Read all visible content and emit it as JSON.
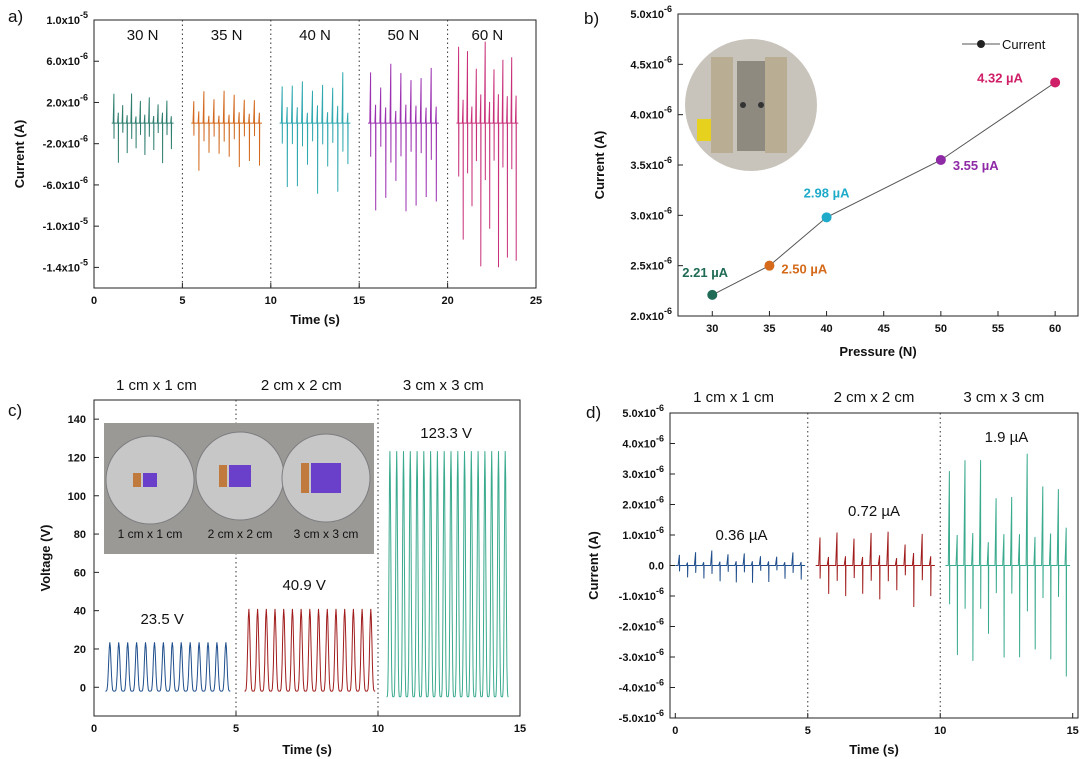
{
  "colors": {
    "teal": "#2e7d6e",
    "orange": "#d2691e",
    "cyan": "#2fa8b0",
    "purple": "#9b30b0",
    "magenta": "#c8317a",
    "dkgreen": "#1f6b55",
    "pt_orange": "#d46a1a",
    "pt_cyan": "#1eabc9",
    "pt_purple": "#8e2aa6",
    "pt_magenta": "#cf1f68",
    "navy": "#1f4e8c",
    "darkred": "#a01c1c",
    "seagreen": "#3aaa8e"
  },
  "chart_data": [
    {
      "panel": "a)",
      "type": "line",
      "xlabel": "Time (s)",
      "ylabel": "Current (A)",
      "xlim": [
        0,
        25
      ],
      "ylim": [
        -1.6e-05,
        1e-05
      ],
      "xticks": [
        "0",
        "5",
        "10",
        "15",
        "20",
        "25"
      ],
      "yticks": [
        {
          "value": 1e-05,
          "mant": "1.0x10",
          "exp": "-5"
        },
        {
          "value": 6e-06,
          "mant": "6.0x10",
          "exp": "-6"
        },
        {
          "value": 2e-06,
          "mant": "2.0x10",
          "exp": "-6"
        },
        {
          "value": -2e-06,
          "mant": "-2.0x10",
          "exp": "-6"
        },
        {
          "value": -6e-06,
          "mant": "-6.0x10",
          "exp": "-6"
        },
        {
          "value": -1e-05,
          "mant": "-1.0x10",
          "exp": "-5"
        },
        {
          "value": -1.4e-05,
          "mant": "-1.4x10",
          "exp": "-5"
        }
      ],
      "dividers": [
        5,
        10,
        15,
        20
      ],
      "series": [
        {
          "name": "30 N",
          "x_range": [
            1.0,
            4.5
          ],
          "peak_pos": 3e-06,
          "peak_neg": -4e-06,
          "color": "teal"
        },
        {
          "name": "35 N",
          "x_range": [
            5.5,
            9.5
          ],
          "peak_pos": 3.5e-06,
          "peak_neg": -5e-06,
          "color": "orange"
        },
        {
          "name": "40 N",
          "x_range": [
            10.5,
            14.5
          ],
          "peak_pos": 5e-06,
          "peak_neg": -7e-06,
          "color": "cyan"
        },
        {
          "name": "50 N",
          "x_range": [
            15.5,
            19.5
          ],
          "peak_pos": 6e-06,
          "peak_neg": -1e-05,
          "color": "purple"
        },
        {
          "name": "60 N",
          "x_range": [
            20.5,
            24.0
          ],
          "peak_pos": 8e-06,
          "peak_neg": -1.4e-05,
          "color": "magenta"
        }
      ]
    },
    {
      "panel": "b)",
      "type": "scatter",
      "xlabel": "Pressure (N)",
      "ylabel": "Current (A)",
      "xlim": [
        27,
        62
      ],
      "ylim": [
        2e-06,
        5e-06
      ],
      "xticks": [
        "30",
        "35",
        "40",
        "45",
        "50",
        "55",
        "60"
      ],
      "yticks": [
        {
          "value": 5e-06,
          "mant": "5.0x10",
          "exp": "-6"
        },
        {
          "value": 4.5e-06,
          "mant": "4.5x10",
          "exp": "-6"
        },
        {
          "value": 4e-06,
          "mant": "4.0x10",
          "exp": "-6"
        },
        {
          "value": 3.5e-06,
          "mant": "3.5x10",
          "exp": "-6"
        },
        {
          "value": 3e-06,
          "mant": "3.0x10",
          "exp": "-6"
        },
        {
          "value": 2.5e-06,
          "mant": "2.5x10",
          "exp": "-6"
        },
        {
          "value": 2e-06,
          "mant": "2.0x10",
          "exp": "-6"
        }
      ],
      "legend": "Current",
      "legend_position": "top-right",
      "x": [
        30,
        35,
        40,
        50,
        60
      ],
      "y": [
        2.21e-06,
        2.5e-06,
        2.98e-06,
        3.55e-06,
        4.32e-06
      ],
      "labels": [
        "2.21 µA",
        "2.50 µA",
        "2.98 µA",
        "3.55 µA",
        "4.32 µA"
      ],
      "point_colors": [
        "dkgreen",
        "pt_orange",
        "pt_cyan",
        "pt_purple",
        "pt_magenta"
      ]
    },
    {
      "panel": "c)",
      "type": "line",
      "xlabel": "Time (s)",
      "ylabel": "Voltage (V)",
      "xlim": [
        0,
        15
      ],
      "ylim": [
        -15,
        150
      ],
      "xticks": [
        "0",
        "5",
        "10",
        "15"
      ],
      "yticks": [
        {
          "value": 140,
          "label": "140"
        },
        {
          "value": 120,
          "label": "120"
        },
        {
          "value": 100,
          "label": "100"
        },
        {
          "value": 80,
          "label": "80"
        },
        {
          "value": 60,
          "label": "60"
        },
        {
          "value": 40,
          "label": "40"
        },
        {
          "value": 20,
          "label": "20"
        },
        {
          "value": 0,
          "label": "0"
        }
      ],
      "dividers": [
        5,
        10
      ],
      "section_titles": [
        "1 cm x 1 cm",
        "2 cm x 2 cm",
        "3 cm x 3 cm"
      ],
      "inset_labels": [
        "1 cm x 1 cm",
        "2 cm x 2 cm",
        "3 cm x 3 cm"
      ],
      "series": [
        {
          "name": "1 cm x 1 cm",
          "x_range": [
            0.4,
            4.8
          ],
          "peak": 23.5,
          "low": -2,
          "annotation": "23.5 V",
          "color": "navy"
        },
        {
          "name": "2 cm x 2 cm",
          "x_range": [
            5.3,
            9.9
          ],
          "peak": 40.9,
          "low": -2,
          "annotation": "40.9 V",
          "color": "darkred"
        },
        {
          "name": "3 cm x 3 cm",
          "x_range": [
            10.3,
            14.6
          ],
          "peak": 123.3,
          "low": -5,
          "annotation": "123.3 V",
          "color": "seagreen"
        }
      ]
    },
    {
      "panel": "d)",
      "type": "line",
      "xlabel": "Time (s)",
      "ylabel": "Current (A)",
      "xlim": [
        -0.2,
        15.2
      ],
      "ylim": [
        -5e-06,
        5e-06
      ],
      "xticks": [
        "0",
        "5",
        "10",
        "15"
      ],
      "yticks": [
        {
          "value": 5e-06,
          "mant": "5.0x10",
          "exp": "-6"
        },
        {
          "value": 4e-06,
          "mant": "4.0x10",
          "exp": "-6"
        },
        {
          "value": 3e-06,
          "mant": "3.0x10",
          "exp": "-6"
        },
        {
          "value": 2e-06,
          "mant": "2.0x10",
          "exp": "-6"
        },
        {
          "value": 1e-06,
          "mant": "1.0x10",
          "exp": "-6"
        },
        {
          "value": 0,
          "mant": "0.0",
          "exp": ""
        },
        {
          "value": -1e-06,
          "mant": "-1.0x10",
          "exp": "-6"
        },
        {
          "value": -2e-06,
          "mant": "-2.0x10",
          "exp": "-6"
        },
        {
          "value": -3e-06,
          "mant": "-3.0x10",
          "exp": "-6"
        },
        {
          "value": -4e-06,
          "mant": "-4.0x10",
          "exp": "-6"
        },
        {
          "value": -5e-06,
          "mant": "-5.0x10",
          "exp": "-6"
        }
      ],
      "dividers": [
        5,
        10
      ],
      "section_titles": [
        "1 cm x 1 cm",
        "2 cm x 2 cm",
        "3 cm x 3 cm"
      ],
      "series": [
        {
          "name": "1 cm x 1 cm",
          "x_range": [
            0.0,
            4.9
          ],
          "peak_pos": 5e-07,
          "peak_neg": -7e-07,
          "annotation": "0.36 µA",
          "color": "navy"
        },
        {
          "name": "2 cm x 2 cm",
          "x_range": [
            5.3,
            9.8
          ],
          "peak_pos": 1.2e-06,
          "peak_neg": -1.4e-06,
          "annotation": "0.72 µA",
          "color": "darkred"
        },
        {
          "name": "3 cm x 3 cm",
          "x_range": [
            10.2,
            14.9
          ],
          "peak_pos": 3.7e-06,
          "peak_neg": -3.8e-06,
          "annotation": "1.9 µA",
          "color": "seagreen"
        }
      ]
    }
  ]
}
